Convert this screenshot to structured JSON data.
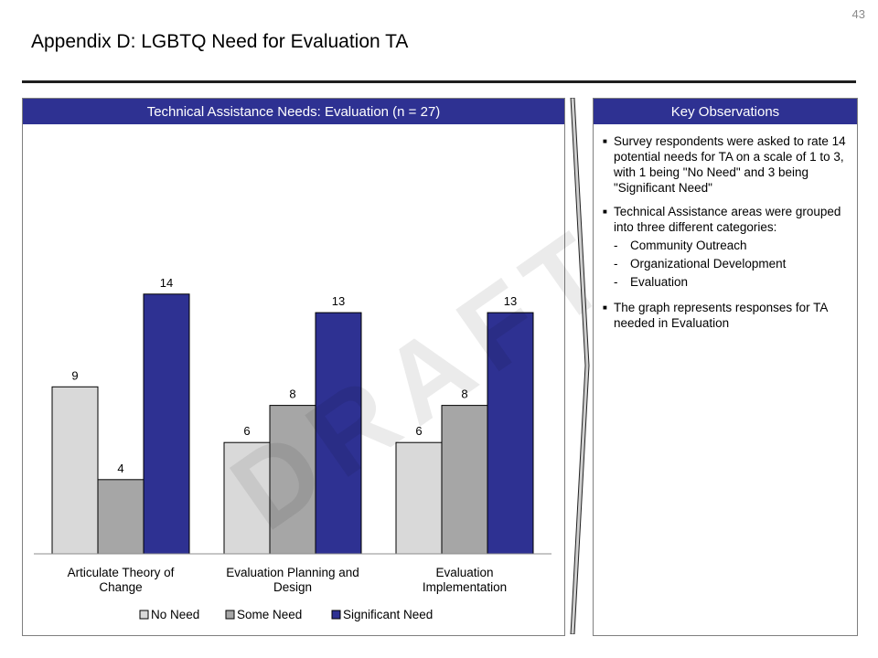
{
  "page": {
    "number": "43",
    "title": "Appendix D: LGBTQ Need for Evaluation TA",
    "watermark": "DRAFT"
  },
  "chart_panel": {
    "header": "Technical Assistance Needs: Evaluation (n = 27)"
  },
  "observations": {
    "header": "Key Observations",
    "bullets": [
      {
        "text": "Survey respondents were asked to rate 14 potential needs for TA on a scale of 1 to 3, with 1 being \"No Need\" and 3 being \"Significant Need\"",
        "sub": []
      },
      {
        "text": "Technical Assistance areas were grouped into three different categories:",
        "sub": [
          "Community Outreach",
          "Organizational Development",
          "Evaluation"
        ]
      },
      {
        "text": "The graph represents responses for TA needed in Evaluation",
        "sub": []
      }
    ]
  },
  "chart_data": {
    "type": "bar",
    "title": "Technical Assistance Needs: Evaluation (n = 27)",
    "categories": [
      [
        "Articulate Theory of",
        "Change"
      ],
      [
        "Evaluation Planning and",
        "Design"
      ],
      [
        "Evaluation",
        "Implementation"
      ]
    ],
    "series": [
      {
        "name": "No Need",
        "values": [
          9,
          6,
          6
        ],
        "color": "#d9d9d9"
      },
      {
        "name": "Some Need",
        "values": [
          4,
          8,
          8
        ],
        "color": "#a6a6a6"
      },
      {
        "name": "Significant Need",
        "values": [
          14,
          13,
          13
        ],
        "color": "#2e3192"
      }
    ],
    "ylim": [
      0,
      14
    ],
    "grid": false,
    "legend": "bottom"
  }
}
